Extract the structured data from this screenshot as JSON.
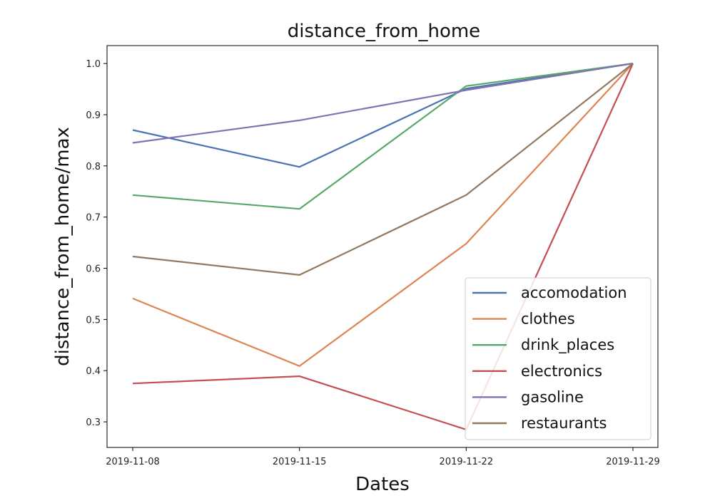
{
  "chart_data": {
    "type": "line",
    "title": "distance_from_home",
    "xlabel": "Dates",
    "ylabel": "distance_from_home/max",
    "x": [
      "2019-11-08",
      "2019-11-15",
      "2019-11-22",
      "2019-11-29"
    ],
    "yticks": [
      0.3,
      0.4,
      0.5,
      0.6,
      0.7,
      0.8,
      0.9,
      1.0
    ],
    "ytick_labels": [
      "0.3",
      "0.4",
      "0.5",
      "0.6",
      "0.7",
      "0.8",
      "0.9",
      "1.0"
    ],
    "ylim": [
      0.25,
      1.035
    ],
    "grid": false,
    "legend_position": "lower-right",
    "series": [
      {
        "name": "accomodation",
        "color": "#4c72b0",
        "values": [
          0.87,
          0.798,
          0.951,
          1.0
        ]
      },
      {
        "name": "clothes",
        "color": "#dd8452",
        "values": [
          0.541,
          0.409,
          0.648,
          1.0
        ]
      },
      {
        "name": "drink_places",
        "color": "#55a868",
        "values": [
          0.743,
          0.716,
          0.956,
          1.0
        ]
      },
      {
        "name": "electronics",
        "color": "#c44e52",
        "values": [
          0.375,
          0.389,
          0.285,
          1.0
        ]
      },
      {
        "name": "gasoline",
        "color": "#8172b3",
        "values": [
          0.845,
          0.889,
          0.948,
          1.0
        ]
      },
      {
        "name": "restaurants",
        "color": "#937860",
        "values": [
          0.623,
          0.587,
          0.743,
          1.0
        ]
      }
    ]
  }
}
